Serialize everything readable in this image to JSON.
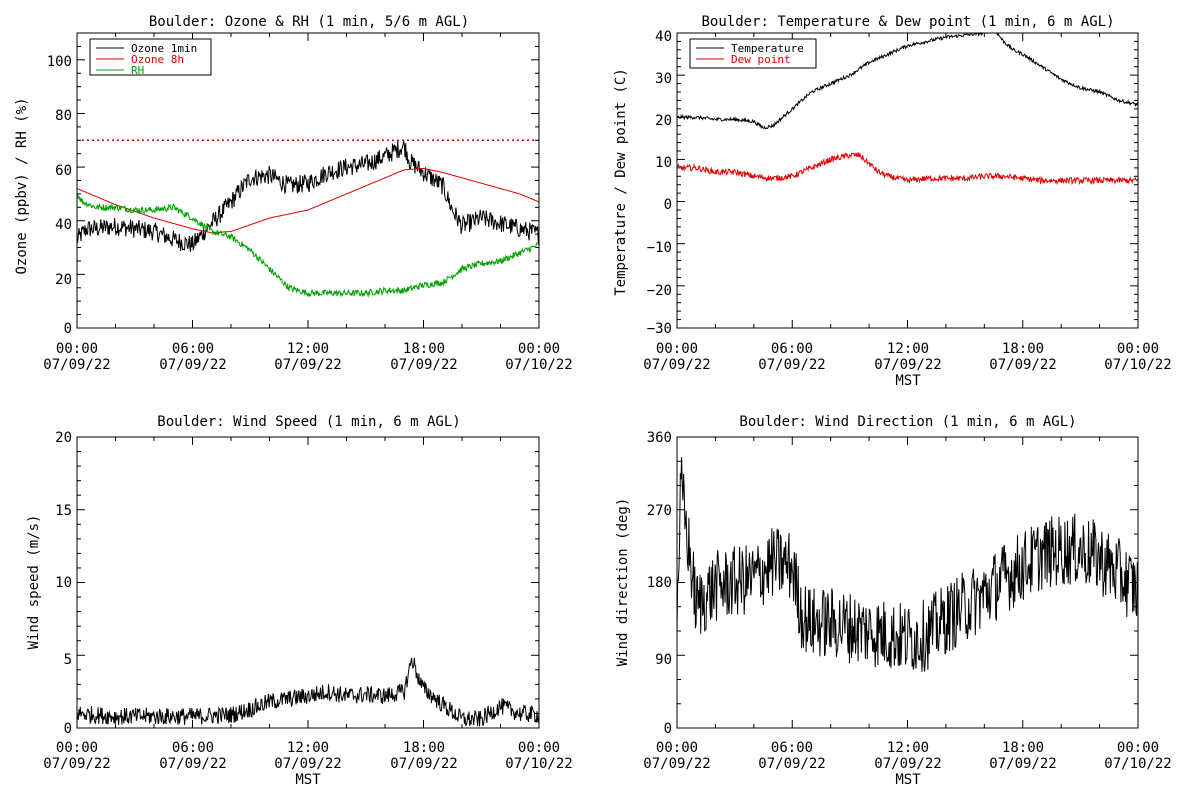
{
  "colors": {
    "ozone": "#000000",
    "ozone8h": "#e00000",
    "rh": "#00a000",
    "temperature": "#000000",
    "dewpoint": "#e00000",
    "wind": "#000000",
    "threshold": "#e00000"
  },
  "chart_data": [
    {
      "type": "line",
      "title": "Boulder: Ozone & RH (1 min, 5/6 m AGL)",
      "ylabel": "Ozone (ppbv) / RH (%)",
      "xlabel": "",
      "ylim": [
        0,
        110
      ],
      "yticks": [
        "0",
        "20",
        "40",
        "60",
        "80",
        "100"
      ],
      "xticks": [
        {
          "time": "00:00",
          "date": "07/09/22"
        },
        {
          "time": "06:00",
          "date": "07/09/22"
        },
        {
          "time": "12:00",
          "date": "07/09/22"
        },
        {
          "time": "18:00",
          "date": "07/09/22"
        },
        {
          "time": "00:00",
          "date": "07/10/22"
        }
      ],
      "threshold": 70,
      "legend": "top-left",
      "series": [
        {
          "name": "Ozone 1min",
          "color": "#000000",
          "noise": 3.5,
          "x": [
            0,
            0.5,
            1,
            2,
            3,
            4,
            5,
            6,
            7,
            8,
            9,
            10,
            11,
            12,
            13,
            14,
            15,
            16,
            16.5,
            17,
            17.3,
            18,
            19,
            19.5,
            20,
            21,
            22,
            23,
            24
          ],
          "y": [
            33,
            37,
            37,
            38,
            37,
            36,
            33,
            31,
            39,
            47,
            56,
            57,
            53,
            54,
            58,
            60,
            61,
            64,
            66,
            68,
            62,
            58,
            53,
            44,
            38,
            41,
            39,
            37,
            35
          ]
        },
        {
          "name": "Ozone 8h",
          "color": "#e00000",
          "noise": 0,
          "x": [
            0,
            2,
            4,
            6,
            7,
            8,
            10,
            12,
            14,
            16,
            17,
            18,
            19,
            20,
            21,
            22,
            23,
            24
          ],
          "y": [
            52,
            46,
            41,
            37,
            35.5,
            36,
            41,
            44,
            50,
            56,
            59,
            59.5,
            58,
            56,
            54,
            52,
            50,
            47
          ]
        },
        {
          "name": "RH",
          "color": "#00a000",
          "noise": 1.2,
          "x": [
            0,
            0.3,
            1,
            2,
            3,
            4,
            5,
            6,
            7,
            8,
            9,
            10,
            11,
            12,
            13,
            14,
            15,
            16,
            17,
            18,
            19,
            20,
            21,
            22,
            23,
            24
          ],
          "y": [
            50,
            47,
            45,
            45,
            44,
            44,
            45,
            41,
            36,
            34,
            29,
            22,
            15,
            13,
            13,
            13,
            13,
            14,
            14,
            16,
            17,
            22,
            24,
            25,
            28,
            31
          ]
        }
      ]
    },
    {
      "type": "line",
      "title": "Boulder: Temperature & Dew point (1 min, 6 m AGL)",
      "ylabel": "Temperature / Dew point (C)",
      "xlabel": "MST",
      "ylim": [
        -30,
        40
      ],
      "yticks": [
        "−30",
        "−20",
        "−10",
        "0",
        "10",
        "20",
        "30",
        "40"
      ],
      "xticks": [
        {
          "time": "00:00",
          "date": "07/09/22"
        },
        {
          "time": "06:00",
          "date": "07/09/22"
        },
        {
          "time": "12:00",
          "date": "07/09/22"
        },
        {
          "time": "18:00",
          "date": "07/09/22"
        },
        {
          "time": "00:00",
          "date": "07/10/22"
        }
      ],
      "legend": "top-left",
      "series": [
        {
          "name": "Temperature",
          "color": "#000000",
          "noise": 0.4,
          "x": [
            0,
            1,
            2,
            3,
            4,
            4.5,
            5,
            6,
            7,
            8,
            9,
            10,
            11,
            12,
            13,
            14,
            15,
            16,
            16.5,
            17,
            17.5,
            18,
            19,
            20,
            21,
            22,
            23,
            24
          ],
          "y": [
            20,
            20,
            19.5,
            19.5,
            19,
            17.5,
            18,
            22,
            26,
            28,
            30,
            33,
            35,
            37,
            38,
            39,
            39.5,
            40,
            41,
            38,
            36,
            35,
            32,
            29,
            27,
            26,
            24,
            23
          ]
        },
        {
          "name": "Dew point",
          "color": "#e00000",
          "noise": 0.7,
          "x": [
            0,
            1,
            2,
            3,
            4,
            5,
            6,
            7,
            8,
            9,
            9.5,
            10,
            10.5,
            11,
            12,
            13,
            14,
            15,
            16,
            17,
            18,
            19,
            20,
            21,
            22,
            23,
            24
          ],
          "y": [
            8,
            8,
            7,
            7,
            6,
            5.5,
            6,
            8,
            10,
            11,
            11,
            9,
            7,
            6,
            5,
            5.5,
            5.5,
            5.5,
            6,
            6,
            5.5,
            5,
            5,
            5,
            5,
            5,
            5
          ]
        }
      ]
    },
    {
      "type": "line",
      "title": "Boulder: Wind Speed (1 min, 6 m AGL)",
      "ylabel": "Wind speed (m/s)",
      "xlabel": "MST",
      "ylim": [
        0,
        20
      ],
      "yticks": [
        "0",
        "5",
        "10",
        "15",
        "20"
      ],
      "xticks": [
        {
          "time": "00:00",
          "date": "07/09/22"
        },
        {
          "time": "06:00",
          "date": "07/09/22"
        },
        {
          "time": "12:00",
          "date": "07/09/22"
        },
        {
          "time": "18:00",
          "date": "07/09/22"
        },
        {
          "time": "00:00",
          "date": "07/10/22"
        }
      ],
      "series": [
        {
          "color": "#000000",
          "noise": 0.6,
          "x": [
            0,
            2,
            4,
            6,
            8,
            9,
            10,
            12,
            13,
            14,
            15,
            16,
            17,
            17.4,
            17.8,
            18,
            19,
            20,
            21,
            22,
            23,
            24
          ],
          "y": [
            1,
            0.8,
            0.8,
            0.8,
            0.9,
            1.3,
            1.8,
            2.2,
            2.5,
            2.2,
            2.3,
            2.2,
            2.5,
            4.8,
            3.2,
            2.7,
            1.6,
            0.6,
            0.6,
            1.5,
            1,
            0.9
          ]
        }
      ]
    },
    {
      "type": "line",
      "title": "Boulder: Wind Direction (1 min, 6 m AGL)",
      "ylabel": "Wind direction (deg)",
      "xlabel": "MST",
      "ylim": [
        0,
        360
      ],
      "yticks": [
        "0",
        "90",
        "180",
        "270",
        "360"
      ],
      "xticks": [
        {
          "time": "00:00",
          "date": "07/09/22"
        },
        {
          "time": "06:00",
          "date": "07/09/22"
        },
        {
          "time": "12:00",
          "date": "07/09/22"
        },
        {
          "time": "18:00",
          "date": "07/09/22"
        },
        {
          "time": "00:00",
          "date": "07/10/22"
        }
      ],
      "series": [
        {
          "color": "#000000",
          "noise": 45,
          "x": [
            0,
            0.2,
            1,
            2,
            3,
            4,
            5,
            6,
            6.5,
            7,
            8,
            9,
            10,
            11,
            12,
            13,
            14,
            15,
            16,
            17,
            18,
            19,
            20,
            21,
            22,
            23,
            24
          ],
          "y": [
            140,
            300,
            150,
            175,
            180,
            185,
            205,
            200,
            140,
            130,
            130,
            125,
            120,
            115,
            110,
            115,
            135,
            150,
            165,
            185,
            200,
            215,
            220,
            220,
            210,
            190,
            170
          ]
        }
      ]
    }
  ]
}
